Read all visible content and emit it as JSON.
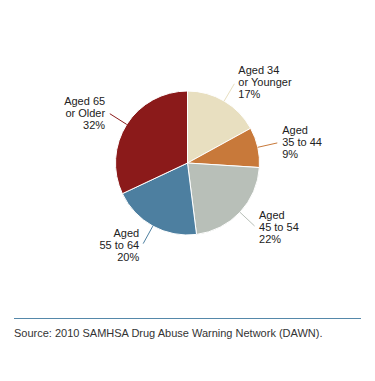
{
  "chart_data": {
    "type": "pie",
    "categories": [
      "Aged 34\nor Younger",
      "Aged\n35 to 44",
      "Aged\n45 to 54",
      "Aged\n55 to 64",
      "Aged 65\nor Older"
    ],
    "values": [
      17,
      9,
      22,
      20,
      32
    ],
    "value_labels": [
      "17%",
      "9%",
      "22%",
      "20%",
      "32%"
    ],
    "data_labels": true,
    "colors": [
      "#e8dfc0",
      "#c8793a",
      "#b8bfb8",
      "#4d7fa0",
      "#8b1a1a"
    ],
    "annotations": [
      "Source: 2010 SAMHSA Drug Abuse Warning Network (DAWN)."
    ]
  }
}
